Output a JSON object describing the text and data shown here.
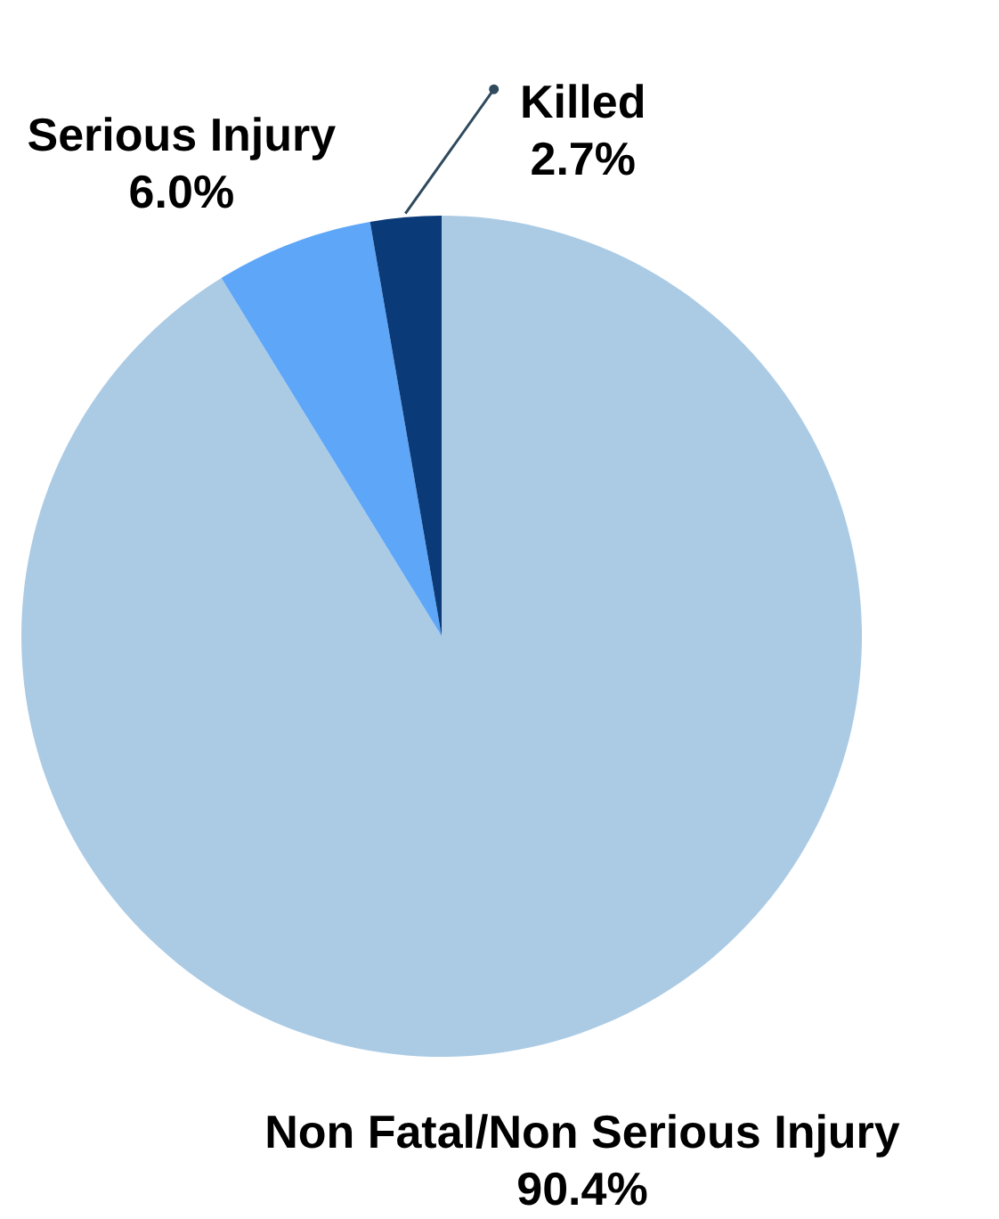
{
  "chart_data": {
    "type": "pie",
    "categories": [
      "Non Fatal/Non Serious Injury",
      "Serious Injury",
      "Killed"
    ],
    "values": [
      90.4,
      6.0,
      2.7
    ],
    "colors": [
      "#abcbe5",
      "#5ea6f7",
      "#0a3a78"
    ],
    "value_labels": [
      "90.4%",
      "6.0%",
      "2.7%"
    ]
  }
}
